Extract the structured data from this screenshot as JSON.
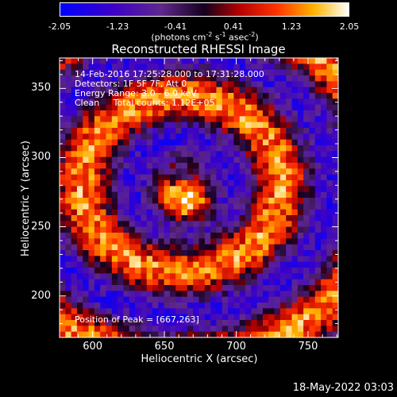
{
  "colorbar": {
    "ticks": [
      "-2.05",
      "-1.23",
      "-0.41",
      "0.41",
      "1.23",
      "2.05"
    ],
    "label_main": "(photons cm",
    "label_exp1": "-2",
    "label_mid1": " s",
    "label_exp2": "-1",
    "label_mid2": " asec",
    "label_exp3": "-2",
    "label_end": ")"
  },
  "chart_data": {
    "type": "heatmap",
    "title": "Reconstructed RHESSI Image",
    "xlabel": "Heliocentric X (arcsec)",
    "ylabel": "Heliocentric Y (arcsec)",
    "xlim": [
      577,
      771
    ],
    "ylim": [
      170,
      372
    ],
    "xticks": [
      600,
      650,
      700,
      750
    ],
    "yticks": [
      200,
      250,
      300,
      350
    ],
    "color_range": [
      -2.05,
      2.05
    ],
    "colormap": "blue-purple-red-orange-yellow-white",
    "peak": [
      667,
      263
    ],
    "annotations": [
      "14-Feb-2016 17:25:28.000 to 17:31:28.000",
      "Detectors: 1F 5F 7F, Att 0",
      "Energy Range: 3.0 - 6.0 keV",
      "Clean     Total counts: 1.12E+05",
      "Position of Peak = [667,263]"
    ]
  },
  "footer": "18-May-2022 03:03"
}
